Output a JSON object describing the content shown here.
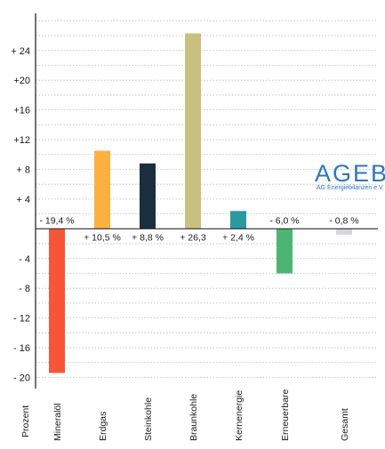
{
  "chart_data": {
    "type": "bar",
    "ylabel": "Prozent",
    "ylim": [
      -21.5,
      29
    ],
    "yticks": [
      24,
      20,
      16,
      12,
      8,
      4,
      0,
      -4,
      -8,
      -12,
      -16,
      -20
    ],
    "ytick_labels": [
      "+ 24",
      "+20",
      "+16",
      "+12",
      "+ 8",
      "+ 4",
      "",
      "- 4",
      "- 8",
      "- 12",
      "- 16",
      "- 20"
    ],
    "grid": true,
    "categories": [
      "Mineralöl",
      "Erdgas",
      "Steinkohle",
      "Braunkohle",
      "Kernenergie",
      "Erneuerbare",
      "Gesamt"
    ],
    "values": [
      -19.4,
      10.5,
      8.8,
      26.3,
      2.4,
      -6.0,
      -0.8
    ],
    "data_labels": [
      "- 19,4 %",
      "+ 10,5 %",
      "+ 8,8 %",
      "+ 26,3",
      "+ 2,4 %",
      "- 6,0 %",
      "- 0,8 %"
    ],
    "colors": [
      "#f6553a",
      "#fbb040",
      "#1b2e40",
      "#c9c07f",
      "#2a99a0",
      "#4cb574",
      "#d6d7d9"
    ]
  },
  "logo": {
    "text": "AGEB",
    "subtitle": "AG Energiebilanzen e.V.",
    "color": "#2f76bd"
  }
}
